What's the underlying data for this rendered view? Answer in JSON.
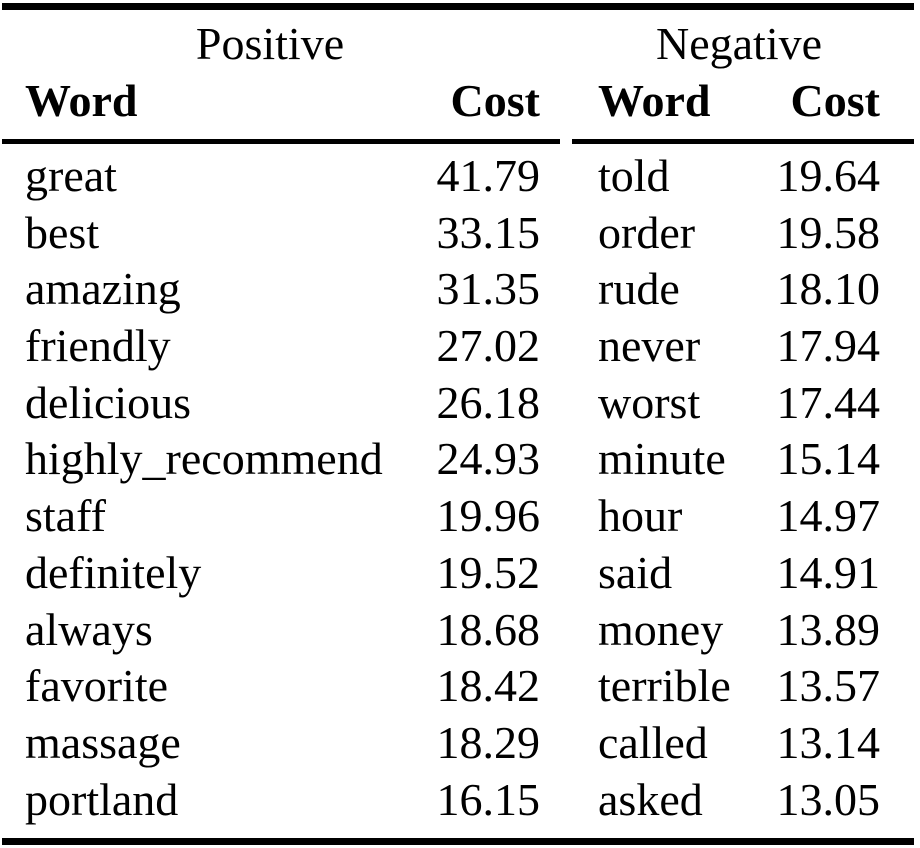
{
  "table": {
    "groups": [
      {
        "label": "Positive"
      },
      {
        "label": "Negative"
      }
    ],
    "columns": [
      "Word",
      "Cost",
      "Word",
      "Cost"
    ],
    "rows": [
      {
        "pos_word": "great",
        "pos_cost": "41.79",
        "neg_word": "told",
        "neg_cost": "19.64"
      },
      {
        "pos_word": "best",
        "pos_cost": "33.15",
        "neg_word": "order",
        "neg_cost": "19.58"
      },
      {
        "pos_word": "amazing",
        "pos_cost": "31.35",
        "neg_word": "rude",
        "neg_cost": "18.10"
      },
      {
        "pos_word": "friendly",
        "pos_cost": "27.02",
        "neg_word": "never",
        "neg_cost": "17.94"
      },
      {
        "pos_word": "delicious",
        "pos_cost": "26.18",
        "neg_word": "worst",
        "neg_cost": "17.44"
      },
      {
        "pos_word": "highly_recommend",
        "pos_cost": "24.93",
        "neg_word": "minute",
        "neg_cost": "15.14"
      },
      {
        "pos_word": "staff",
        "pos_cost": "19.96",
        "neg_word": "hour",
        "neg_cost": "14.97"
      },
      {
        "pos_word": "definitely",
        "pos_cost": "19.52",
        "neg_word": "said",
        "neg_cost": "14.91"
      },
      {
        "pos_word": "always",
        "pos_cost": "18.68",
        "neg_word": "money",
        "neg_cost": "13.89"
      },
      {
        "pos_word": "favorite",
        "pos_cost": "18.42",
        "neg_word": "terrible",
        "neg_cost": "13.57"
      },
      {
        "pos_word": "massage",
        "pos_cost": "18.29",
        "neg_word": "called",
        "neg_cost": "13.14"
      },
      {
        "pos_word": "portland",
        "pos_cost": "16.15",
        "neg_word": "asked",
        "neg_cost": "13.05"
      }
    ]
  },
  "colors": {
    "text": "#000000",
    "background": "#ffffff",
    "rule": "#000000"
  }
}
